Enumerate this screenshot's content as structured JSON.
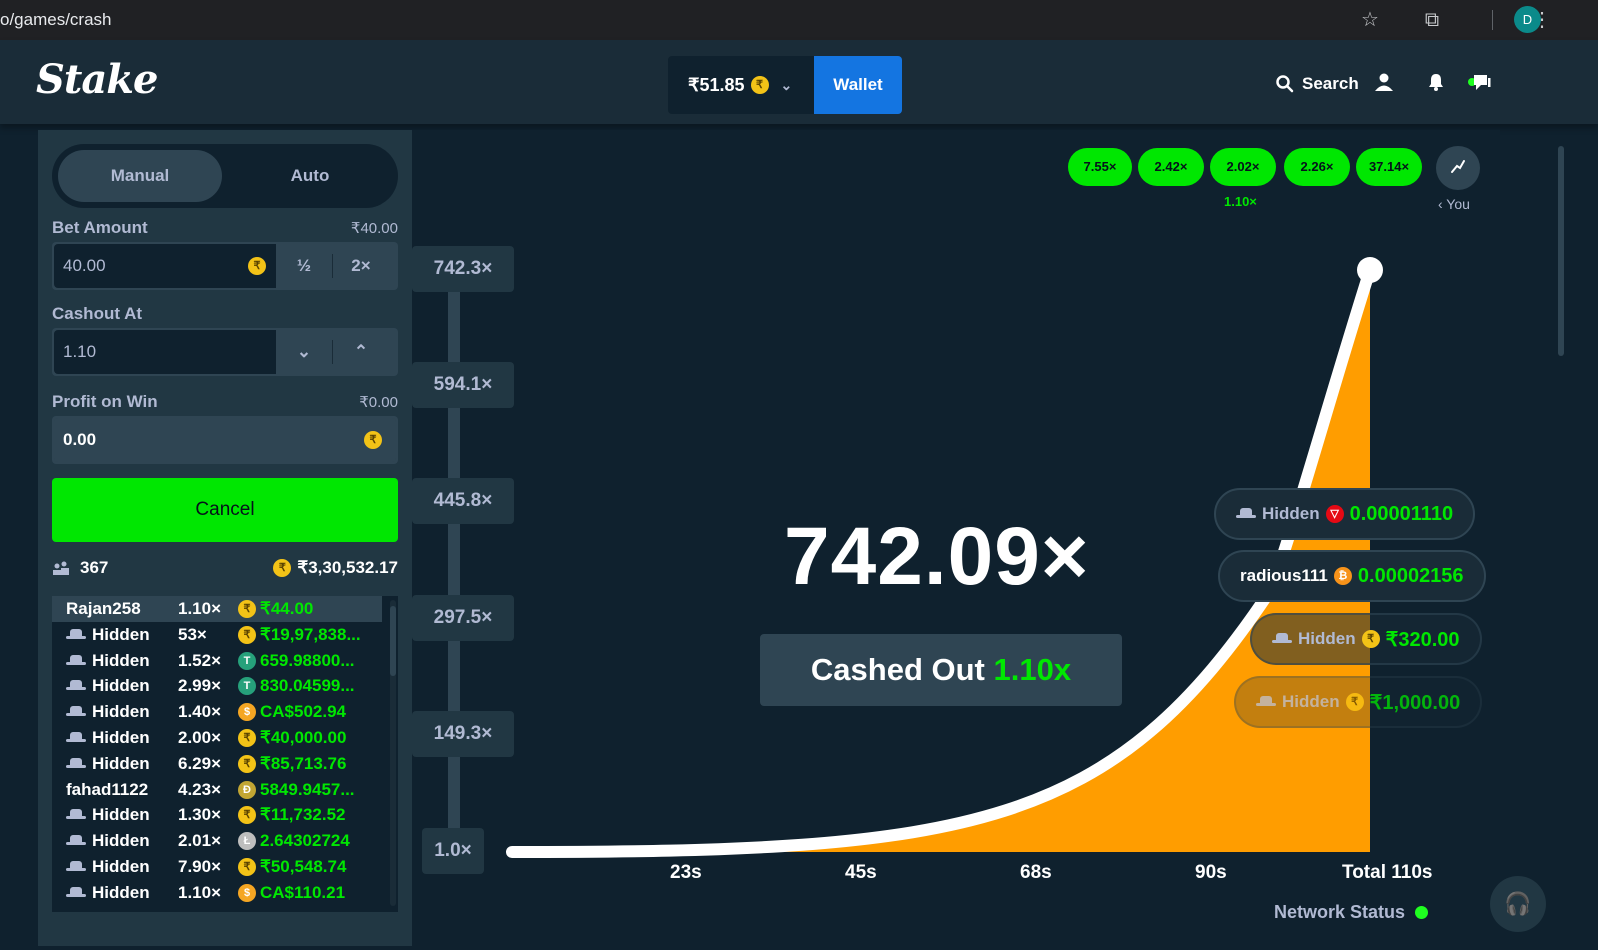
{
  "browser": {
    "url": "o/games/crash",
    "profile_initial": "D"
  },
  "header": {
    "logo": "Stake",
    "balance": "₹51.85",
    "wallet_label": "Wallet",
    "search_label": "Search"
  },
  "left": {
    "tabs": [
      "Manual",
      "Auto"
    ],
    "bet_amount": {
      "label": "Bet Amount",
      "right": "₹40.00",
      "value": "40.00",
      "half": "½",
      "double": "2×"
    },
    "cashout_at": {
      "label": "Cashout At",
      "value": "1.10"
    },
    "profit_on_win": {
      "label": "Profit on Win",
      "right": "₹0.00",
      "value": "0.00"
    },
    "cancel_label": "Cancel",
    "players_count": "367",
    "total_bet": "₹3,30,532.17",
    "rows": [
      {
        "name": "Rajan258",
        "hidden": false,
        "mult": "1.10×",
        "coin": "inr",
        "amount": "₹44.00"
      },
      {
        "name": "Hidden",
        "hidden": true,
        "mult": "53×",
        "coin": "inr",
        "amount": "₹19,97,838..."
      },
      {
        "name": "Hidden",
        "hidden": true,
        "mult": "1.52×",
        "coin": "usdt",
        "amount": "659.98800..."
      },
      {
        "name": "Hidden",
        "hidden": true,
        "mult": "2.99×",
        "coin": "usdt",
        "amount": "830.04599..."
      },
      {
        "name": "Hidden",
        "hidden": true,
        "mult": "1.40×",
        "coin": "cad",
        "amount": "CA$502.94"
      },
      {
        "name": "Hidden",
        "hidden": true,
        "mult": "2.00×",
        "coin": "inr",
        "amount": "₹40,000.00"
      },
      {
        "name": "Hidden",
        "hidden": true,
        "mult": "6.29×",
        "coin": "inr",
        "amount": "₹85,713.76"
      },
      {
        "name": "fahad1122",
        "hidden": false,
        "mult": "4.23×",
        "coin": "doge",
        "amount": "5849.9457..."
      },
      {
        "name": "Hidden",
        "hidden": true,
        "mult": "1.30×",
        "coin": "inr",
        "amount": "₹11,732.52"
      },
      {
        "name": "Hidden",
        "hidden": true,
        "mult": "2.01×",
        "coin": "ltc",
        "amount": "2.64302724"
      },
      {
        "name": "Hidden",
        "hidden": true,
        "mult": "7.90×",
        "coin": "inr",
        "amount": "₹50,548.74"
      },
      {
        "name": "Hidden",
        "hidden": true,
        "mult": "1.10×",
        "coin": "cad",
        "amount": "CA$110.21"
      }
    ]
  },
  "game": {
    "history": [
      "7.55×",
      "2.42×",
      "2.02×",
      "2.26×",
      "37.14×"
    ],
    "history_sub": "1.10×",
    "you_label": "‹ You",
    "y_labels": [
      "742.3×",
      "594.1×",
      "445.8×",
      "297.5×",
      "149.3×",
      "1.0×"
    ],
    "x_labels": [
      "23s",
      "45s",
      "68s",
      "90s",
      "Total 110s"
    ],
    "multiplier": "742.09×",
    "cashed_out_label": "Cashed Out",
    "cashed_out_value": "1.10x",
    "pills": [
      {
        "name": "Hidden",
        "coin": "trx",
        "amount": "0.00001110"
      },
      {
        "name": "radious111",
        "coin": "btc",
        "amount": "0.00002156"
      },
      {
        "name": "Hidden",
        "coin": "inr",
        "amount": "₹320.00"
      },
      {
        "name": "Hidden",
        "coin": "inr",
        "amount": "₹1,000.00"
      }
    ],
    "network_status": "Network Status"
  },
  "colors": {
    "bg": "#0f212e",
    "panel": "#213743",
    "header": "#1a2c38",
    "accent_green": "#00e701",
    "wallet_blue": "#1475e1",
    "curve_fill": "#ff9d00"
  }
}
